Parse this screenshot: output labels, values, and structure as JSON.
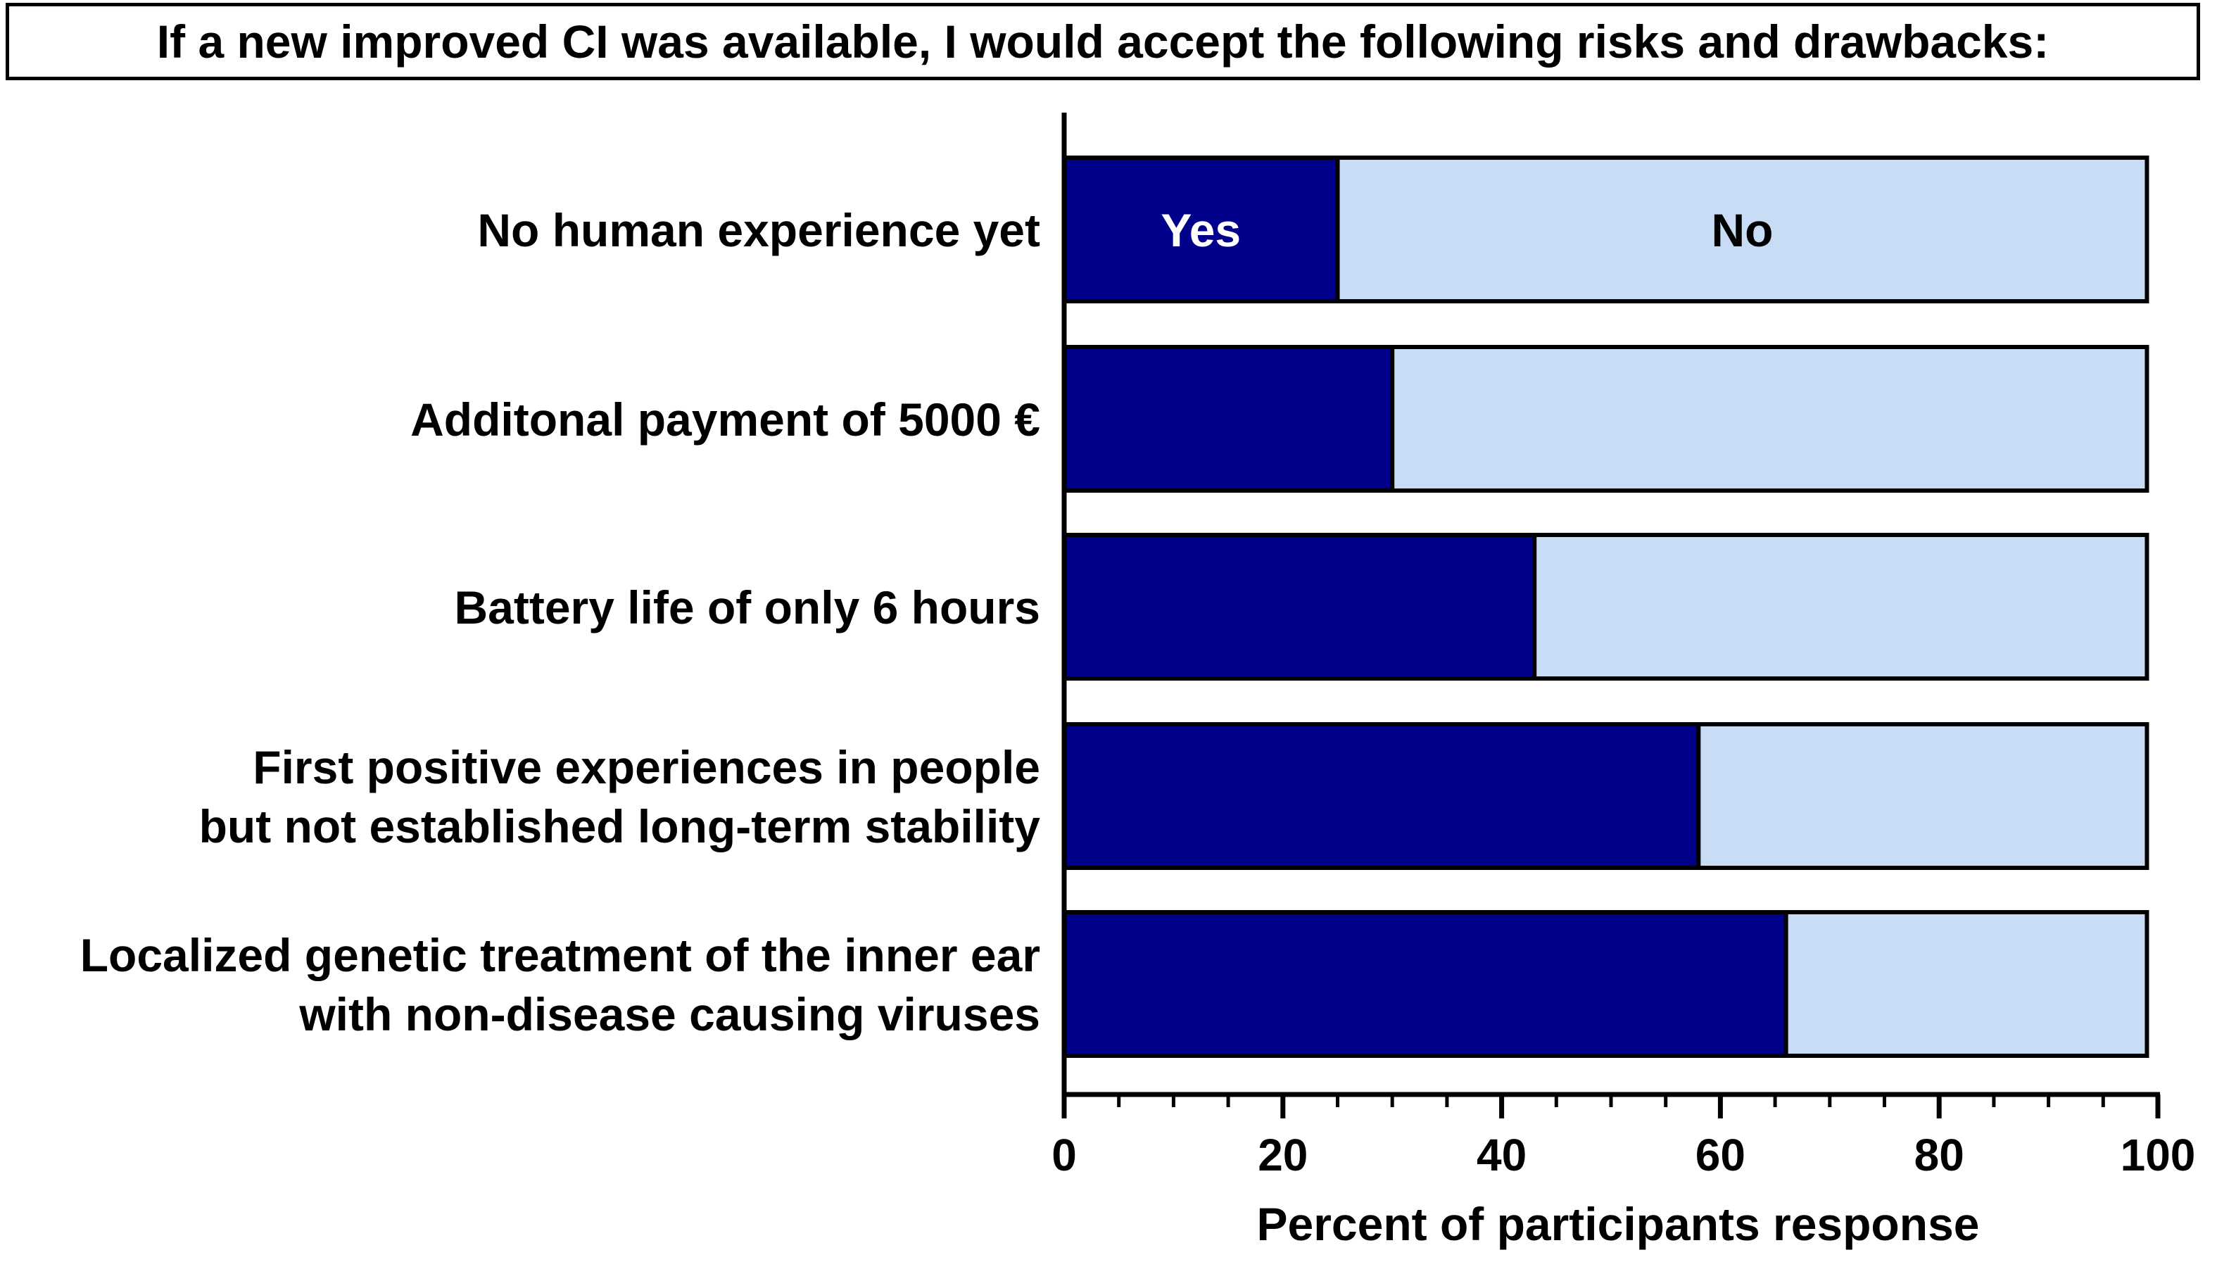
{
  "chart_data": {
    "type": "bar",
    "orientation": "horizontal",
    "stacked": true,
    "title": "If a new improved CI was available, I would accept the following risks and drawbacks:",
    "xlabel": "Percent of participants response",
    "ylabel": "",
    "xlim": [
      0,
      100
    ],
    "xticks": [
      "0",
      "20",
      "40",
      "60",
      "80",
      "100"
    ],
    "categories": [
      [
        "No human experience yet"
      ],
      [
        "Additonal payment of 5000 €"
      ],
      [
        "Battery life of only 6 hours"
      ],
      [
        "First positive experiences in people",
        "but not established long-term stability"
      ],
      [
        "Localized genetic treatment of the inner ear",
        "with non-disease causing viruses"
      ]
    ],
    "series": [
      {
        "name": "Yes",
        "color": "#00008B",
        "values": [
          25,
          30,
          43,
          58,
          66
        ]
      },
      {
        "name": "No",
        "color": "#C8DCF5",
        "values": [
          74,
          69,
          56,
          41,
          33
        ]
      }
    ],
    "grid": false,
    "legend": "inline labels on first bar"
  }
}
